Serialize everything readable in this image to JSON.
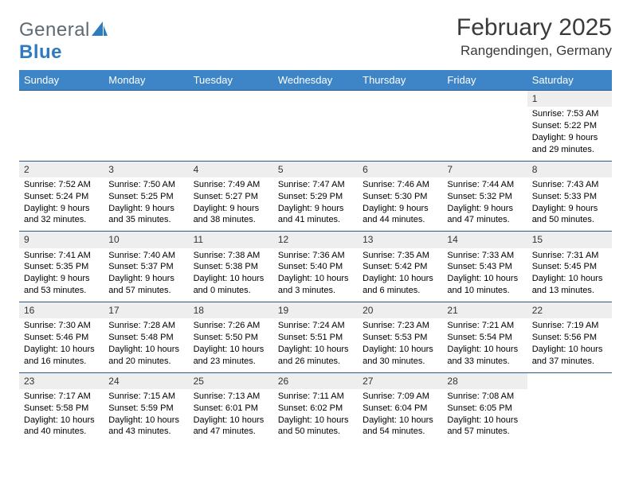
{
  "brand": {
    "part1": "General",
    "part2": "Blue"
  },
  "title": "February 2025",
  "location": "Rangendingen, Germany",
  "colors": {
    "header_bg": "#3d85c6",
    "header_fg": "#ffffff",
    "daynum_bg": "#eeeeee",
    "rule": "#2a5a8a",
    "logo_gray": "#5e6a72",
    "logo_blue": "#2f7bbf"
  },
  "weekdays": [
    "Sunday",
    "Monday",
    "Tuesday",
    "Wednesday",
    "Thursday",
    "Friday",
    "Saturday"
  ],
  "weeks": [
    [
      null,
      null,
      null,
      null,
      null,
      null,
      {
        "n": "1",
        "sr": "Sunrise: 7:53 AM",
        "ss": "Sunset: 5:22 PM",
        "dl": "Daylight: 9 hours and 29 minutes."
      }
    ],
    [
      {
        "n": "2",
        "sr": "Sunrise: 7:52 AM",
        "ss": "Sunset: 5:24 PM",
        "dl": "Daylight: 9 hours and 32 minutes."
      },
      {
        "n": "3",
        "sr": "Sunrise: 7:50 AM",
        "ss": "Sunset: 5:25 PM",
        "dl": "Daylight: 9 hours and 35 minutes."
      },
      {
        "n": "4",
        "sr": "Sunrise: 7:49 AM",
        "ss": "Sunset: 5:27 PM",
        "dl": "Daylight: 9 hours and 38 minutes."
      },
      {
        "n": "5",
        "sr": "Sunrise: 7:47 AM",
        "ss": "Sunset: 5:29 PM",
        "dl": "Daylight: 9 hours and 41 minutes."
      },
      {
        "n": "6",
        "sr": "Sunrise: 7:46 AM",
        "ss": "Sunset: 5:30 PM",
        "dl": "Daylight: 9 hours and 44 minutes."
      },
      {
        "n": "7",
        "sr": "Sunrise: 7:44 AM",
        "ss": "Sunset: 5:32 PM",
        "dl": "Daylight: 9 hours and 47 minutes."
      },
      {
        "n": "8",
        "sr": "Sunrise: 7:43 AM",
        "ss": "Sunset: 5:33 PM",
        "dl": "Daylight: 9 hours and 50 minutes."
      }
    ],
    [
      {
        "n": "9",
        "sr": "Sunrise: 7:41 AM",
        "ss": "Sunset: 5:35 PM",
        "dl": "Daylight: 9 hours and 53 minutes."
      },
      {
        "n": "10",
        "sr": "Sunrise: 7:40 AM",
        "ss": "Sunset: 5:37 PM",
        "dl": "Daylight: 9 hours and 57 minutes."
      },
      {
        "n": "11",
        "sr": "Sunrise: 7:38 AM",
        "ss": "Sunset: 5:38 PM",
        "dl": "Daylight: 10 hours and 0 minutes."
      },
      {
        "n": "12",
        "sr": "Sunrise: 7:36 AM",
        "ss": "Sunset: 5:40 PM",
        "dl": "Daylight: 10 hours and 3 minutes."
      },
      {
        "n": "13",
        "sr": "Sunrise: 7:35 AM",
        "ss": "Sunset: 5:42 PM",
        "dl": "Daylight: 10 hours and 6 minutes."
      },
      {
        "n": "14",
        "sr": "Sunrise: 7:33 AM",
        "ss": "Sunset: 5:43 PM",
        "dl": "Daylight: 10 hours and 10 minutes."
      },
      {
        "n": "15",
        "sr": "Sunrise: 7:31 AM",
        "ss": "Sunset: 5:45 PM",
        "dl": "Daylight: 10 hours and 13 minutes."
      }
    ],
    [
      {
        "n": "16",
        "sr": "Sunrise: 7:30 AM",
        "ss": "Sunset: 5:46 PM",
        "dl": "Daylight: 10 hours and 16 minutes."
      },
      {
        "n": "17",
        "sr": "Sunrise: 7:28 AM",
        "ss": "Sunset: 5:48 PM",
        "dl": "Daylight: 10 hours and 20 minutes."
      },
      {
        "n": "18",
        "sr": "Sunrise: 7:26 AM",
        "ss": "Sunset: 5:50 PM",
        "dl": "Daylight: 10 hours and 23 minutes."
      },
      {
        "n": "19",
        "sr": "Sunrise: 7:24 AM",
        "ss": "Sunset: 5:51 PM",
        "dl": "Daylight: 10 hours and 26 minutes."
      },
      {
        "n": "20",
        "sr": "Sunrise: 7:23 AM",
        "ss": "Sunset: 5:53 PM",
        "dl": "Daylight: 10 hours and 30 minutes."
      },
      {
        "n": "21",
        "sr": "Sunrise: 7:21 AM",
        "ss": "Sunset: 5:54 PM",
        "dl": "Daylight: 10 hours and 33 minutes."
      },
      {
        "n": "22",
        "sr": "Sunrise: 7:19 AM",
        "ss": "Sunset: 5:56 PM",
        "dl": "Daylight: 10 hours and 37 minutes."
      }
    ],
    [
      {
        "n": "23",
        "sr": "Sunrise: 7:17 AM",
        "ss": "Sunset: 5:58 PM",
        "dl": "Daylight: 10 hours and 40 minutes."
      },
      {
        "n": "24",
        "sr": "Sunrise: 7:15 AM",
        "ss": "Sunset: 5:59 PM",
        "dl": "Daylight: 10 hours and 43 minutes."
      },
      {
        "n": "25",
        "sr": "Sunrise: 7:13 AM",
        "ss": "Sunset: 6:01 PM",
        "dl": "Daylight: 10 hours and 47 minutes."
      },
      {
        "n": "26",
        "sr": "Sunrise: 7:11 AM",
        "ss": "Sunset: 6:02 PM",
        "dl": "Daylight: 10 hours and 50 minutes."
      },
      {
        "n": "27",
        "sr": "Sunrise: 7:09 AM",
        "ss": "Sunset: 6:04 PM",
        "dl": "Daylight: 10 hours and 54 minutes."
      },
      {
        "n": "28",
        "sr": "Sunrise: 7:08 AM",
        "ss": "Sunset: 6:05 PM",
        "dl": "Daylight: 10 hours and 57 minutes."
      },
      null
    ]
  ]
}
